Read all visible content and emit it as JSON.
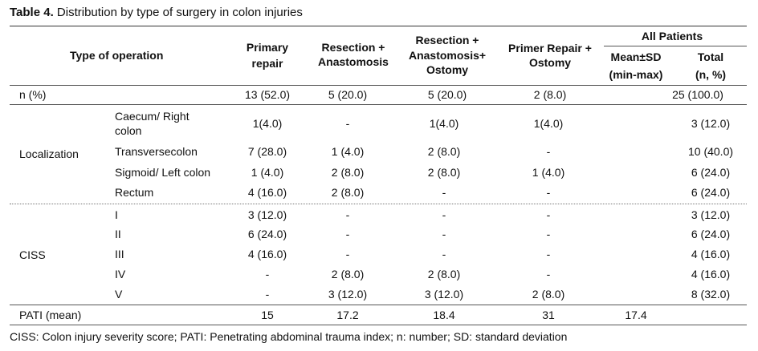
{
  "caption": {
    "label": "Table 4.",
    "text": " Distribution by type of surgery in colon injuries"
  },
  "header": {
    "type_of_operation": "Type of operation",
    "primary_repair_1": "Primary",
    "primary_repair_2": "repair",
    "res_anast_1": "Resection +",
    "res_anast_2": "Anastomosis",
    "res_anast_ost_1": "Resection +",
    "res_anast_ost_2": "Anastomosis+",
    "res_anast_ost_3": "Ostomy",
    "primer_ost_1": "Primer Repair +",
    "primer_ost_2": "Ostomy",
    "all_patients": "All Patients",
    "mean_1": "Mean±SD",
    "mean_2": "(min-max)",
    "total_1": "Total",
    "total_2": "(n, %)"
  },
  "n_row": {
    "label": "n (%)",
    "pr": "13 (52.0)",
    "ra": "5 (20.0)",
    "rao": "5 (20.0)",
    "po": "2 (8.0)",
    "mean": "",
    "total": "25 (100.0)"
  },
  "localization": {
    "group": "Localization",
    "rows": [
      {
        "sub1": "Caecum/ Right",
        "sub2": "colon",
        "pr": "1(4.0)",
        "ra": "-",
        "rao": "1(4.0)",
        "po": "1(4.0)",
        "total": "3 (12.0)"
      },
      {
        "sub1": "Transversecolon",
        "sub2": "",
        "pr": "7 (28.0)",
        "ra": "1 (4.0)",
        "rao": "2 (8.0)",
        "po": "-",
        "total": "10 (40.0)"
      },
      {
        "sub1": "Sigmoid/ Left colon",
        "sub2": "",
        "pr": "1 (4.0)",
        "ra": "2 (8.0)",
        "rao": "2 (8.0)",
        "po": "1 (4.0)",
        "total": "6 (24.0)"
      },
      {
        "sub1": "Rectum",
        "sub2": "",
        "pr": "4 (16.0)",
        "ra": "2 (8.0)",
        "rao": "-",
        "po": "-",
        "total": "6 (24.0)"
      }
    ]
  },
  "ciss": {
    "group": "CISS",
    "rows": [
      {
        "sub": "I",
        "pr": "3 (12.0)",
        "ra": "-",
        "rao": "-",
        "po": "-",
        "total": "3 (12.0)"
      },
      {
        "sub": "II",
        "pr": "6 (24.0)",
        "ra": "-",
        "rao": "-",
        "po": "-",
        "total": "6 (24.0)"
      },
      {
        "sub": "III",
        "pr": "4 (16.0)",
        "ra": "-",
        "rao": "-",
        "po": "-",
        "total": "4 (16.0)"
      },
      {
        "sub": "IV",
        "pr": "-",
        "ra": "2 (8.0)",
        "rao": "2 (8.0)",
        "po": "-",
        "total": "4 (16.0)"
      },
      {
        "sub": "V",
        "pr": "-",
        "ra": "3 (12.0)",
        "rao": "3 (12.0)",
        "po": "2 (8.0)",
        "total": "8 (32.0)"
      }
    ]
  },
  "pati_row": {
    "label": "PATI (mean)",
    "pr": "15",
    "ra": "17.2",
    "rao": "18.4",
    "po": "31",
    "mean": "17.4",
    "total": ""
  },
  "footnote": "CISS: Colon injury severity score; PATI: Penetrating abdominal trauma index; n: number; SD: standard deviation"
}
